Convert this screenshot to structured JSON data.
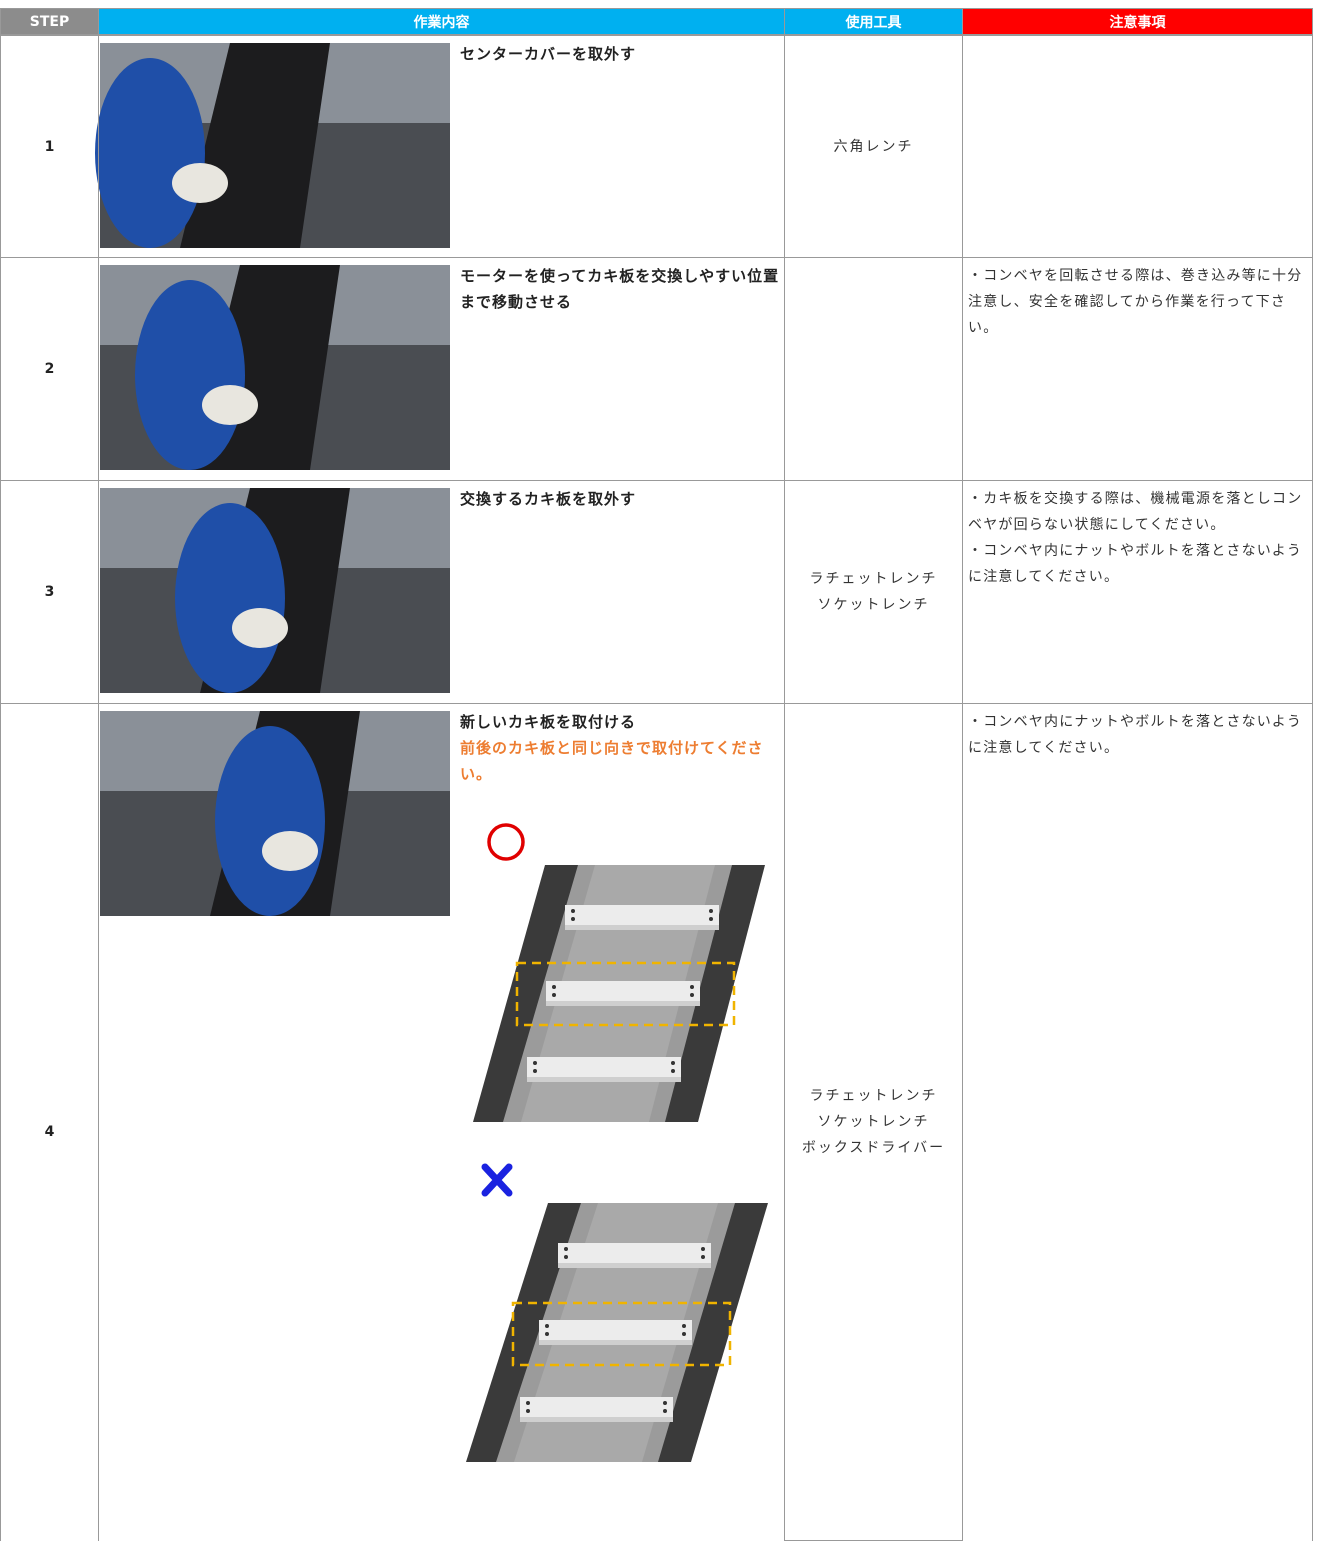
{
  "header": {
    "columns": [
      "STEP",
      "作業内容",
      "使用工具",
      "注意事項"
    ]
  },
  "table": {
    "rows": [
      {
        "step": "1",
        "title": "センターカバーを取外す",
        "tools": [
          "六角レンチ"
        ]
      },
      {
        "step": "2",
        "title": "モーターを使ってカキ板を交換しやすい位置まで移動させる",
        "tools": [],
        "notes": [
          "・コンベヤを回転させる際は、巻き込み等に十分注意し、安全を確認してから作業を行って下さい。"
        ]
      },
      {
        "step": "3",
        "title": "交換するカキ板を取外す",
        "tools": [
          "ラチェットレンチ",
          "ソケットレンチ"
        ],
        "notes": [
          "・カキ板を交換する際は、機械電源を落としコンベヤが回らない状態にしてください。",
          "・コンベヤ内にナットやボルトを落とさないように注意してください。"
        ]
      },
      {
        "step": "4",
        "title": "新しいカキ板を取付ける",
        "caution": "前後のカキ板と同じ向きで取付けてください。",
        "tools": [
          "ラチェットレンチ",
          "ソケットレンチ",
          "ボックスドライバー"
        ],
        "notes": [
          "・コンベヤ内にナットやボルトを落とさないように注意してください。"
        ]
      }
    ]
  }
}
